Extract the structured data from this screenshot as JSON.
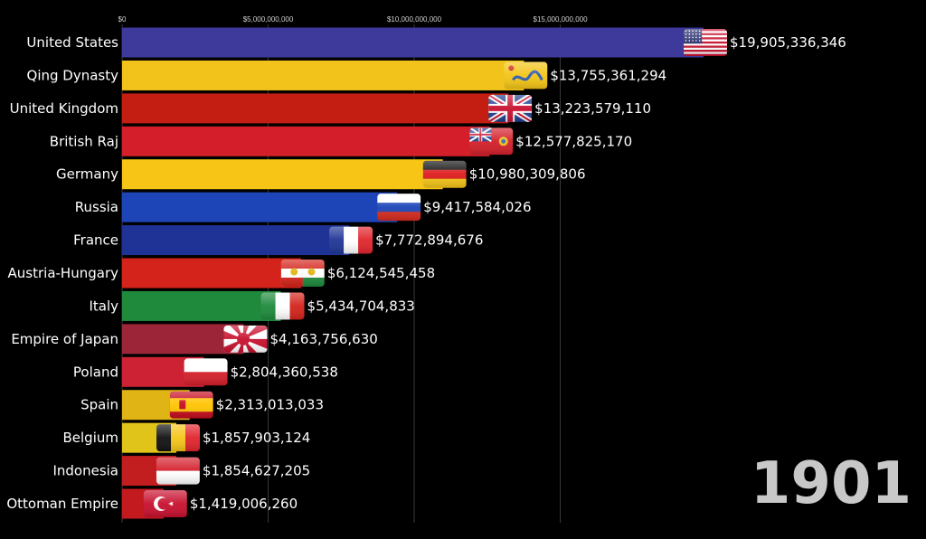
{
  "chart_data": {
    "type": "bar",
    "orientation": "horizontal",
    "year": "1901",
    "xlim": [
      0,
      20000000000
    ],
    "ticks": [
      {
        "value": 0,
        "label": "$0"
      },
      {
        "value": 5000000000,
        "label": "$5,000,000,000"
      },
      {
        "value": 10000000000,
        "label": "$10,000,000,000"
      },
      {
        "value": 15000000000,
        "label": "$15,000,000,000"
      }
    ],
    "grid": true,
    "categories": [
      "United States",
      "Qing Dynasty",
      "United Kingdom",
      "British Raj",
      "Germany",
      "Russia",
      "France",
      "Austria-Hungary",
      "Italy",
      "Empire of Japan",
      "Poland",
      "Spain",
      "Belgium",
      "Indonesia",
      "Ottoman Empire"
    ],
    "values": [
      19905336346,
      13755361294,
      13223579110,
      12577825170,
      10980309806,
      9417584026,
      7772894676,
      6124545458,
      5434704833,
      4163756630,
      2804360538,
      2313013033,
      1857903124,
      1854627205,
      1419006260
    ],
    "value_labels": [
      "$19,905,336,346",
      "$13,755,361,294",
      "$13,223,579,110",
      "$12,577,825,170",
      "$10,980,309,806",
      "$9,417,584,026",
      "$7,772,894,676",
      "$6,124,545,458",
      "$5,434,704,833",
      "$4,163,756,630",
      "$2,804,360,538",
      "$2,313,013,033",
      "$1,857,903,124",
      "$1,854,627,205",
      "$1,419,006,260"
    ],
    "colors": [
      "#3d3a9c",
      "#f2c31b",
      "#c41d12",
      "#d41f2a",
      "#f7c516",
      "#1d45b8",
      "#1f3396",
      "#d4231a",
      "#1f8a3c",
      "#9c2638",
      "#cc2234",
      "#e0b414",
      "#e0c41a",
      "#c21d1f",
      "#c21a1e"
    ],
    "flags": [
      "usa",
      "qing",
      "uk",
      "raj",
      "germany",
      "russia",
      "france",
      "austria-hungary",
      "italy",
      "japan",
      "poland",
      "spain",
      "belgium",
      "indonesia",
      "ottoman"
    ]
  }
}
